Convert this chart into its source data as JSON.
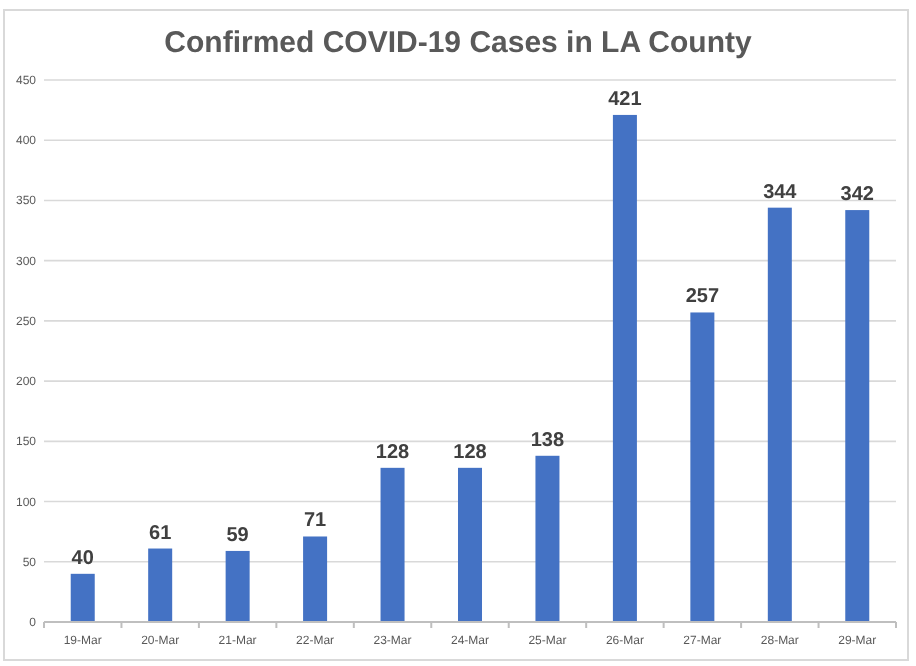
{
  "chart_data": {
    "type": "bar",
    "title": "Confirmed COVID-19 Cases in LA County",
    "categories": [
      "19-Mar",
      "20-Mar",
      "21-Mar",
      "22-Mar",
      "23-Mar",
      "24-Mar",
      "25-Mar",
      "26-Mar",
      "27-Mar",
      "28-Mar",
      "29-Mar"
    ],
    "values": [
      40,
      61,
      59,
      71,
      128,
      128,
      138,
      421,
      257,
      344,
      342
    ],
    "color": "#4472c4",
    "ylim": [
      0,
      450
    ],
    "yticks": [
      0,
      50,
      100,
      150,
      200,
      250,
      300,
      350,
      400,
      450
    ],
    "grid": "y",
    "data_labels": true
  }
}
